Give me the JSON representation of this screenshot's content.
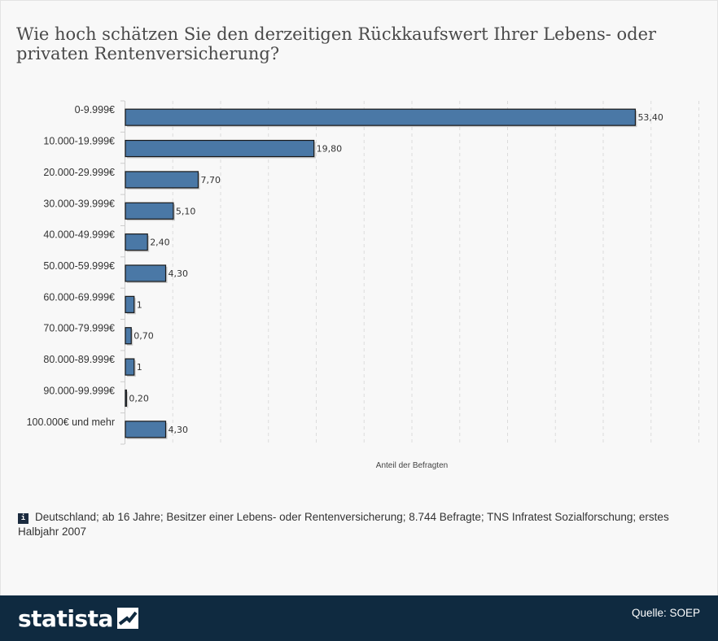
{
  "title": "Wie hoch schätzen Sie den derzeitigen Rückkaufswert Ihrer Lebens- oder privaten Rentenversicherung?",
  "note": {
    "icon": "info-icon",
    "icon_glyph": "i",
    "text": "Deutschland; ab 16 Jahre; Besitzer einer Lebens- oder Rentenversicherung; 8.744 Befragte; TNS Infratest Sozialforschung; erstes Halbjahr 2007"
  },
  "footer": {
    "brand": "statista",
    "source": "Quelle: SOEP"
  },
  "colors": {
    "bar": "#4a78a6",
    "bar_stroke": "#1a1a1a",
    "footer": "#0f2a40",
    "grid": "#dcdcdc"
  },
  "chart_data": {
    "type": "bar",
    "orientation": "horizontal",
    "categories": [
      "0-9.999€",
      "10.000-19.999€",
      "20.000-29.999€",
      "30.000-39.999€",
      "40.000-49.999€",
      "50.000-59.999€",
      "60.000-69.999€",
      "70.000-79.999€",
      "80.000-89.999€",
      "90.000-99.999€",
      "100.000€ und mehr"
    ],
    "values": [
      53.4,
      19.8,
      7.7,
      5.1,
      2.4,
      4.3,
      1,
      0.7,
      1,
      0.2,
      4.3
    ],
    "value_labels": [
      "53,40",
      "19,80",
      "7,70",
      "5,10",
      "2,40",
      "4,30",
      "1",
      "0,70",
      "1",
      "0,20",
      "4,30"
    ],
    "xlabel": "Anteil der Befragten",
    "ylabel": "",
    "xlim": [
      0,
      60
    ],
    "grid": "vertical dashed"
  }
}
